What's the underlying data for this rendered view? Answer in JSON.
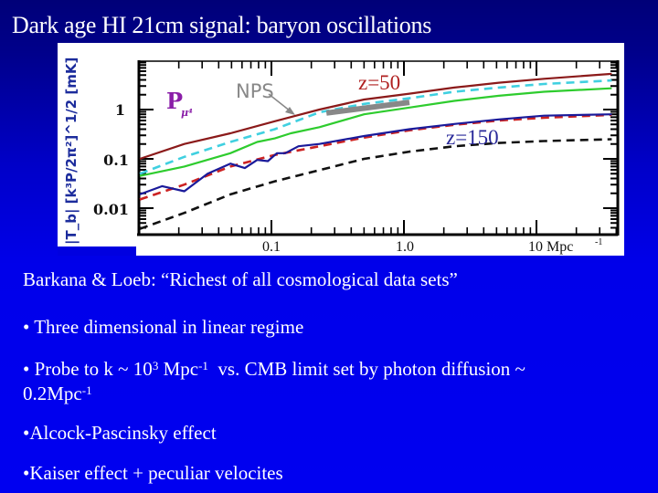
{
  "slide": {
    "title": "Dark age HI 21cm signal: baryon oscillations",
    "background": {
      "top": "#000078",
      "bottom": "#0000f0"
    }
  },
  "figure": {
    "y_axis_label": "|T_b| [k³P/2π²]^1/2 [mK]",
    "y_axis_label_parts": {
      "main": "|T",
      "sub": "b",
      "rest": "| [k³P/2π²]¹/² [mK]"
    },
    "panel_label": "P",
    "panel_label_sub": "μ⁴",
    "nps_label": "NPS",
    "z50_label": "z=50",
    "z150_label": "z=150",
    "x_tick_labels": [
      "0.1",
      "1.0",
      "10 Mpc"
    ],
    "x_unit_sup": "-1",
    "y_tick_labels": [
      "1",
      "0.1",
      "0.01"
    ]
  },
  "chart_data": {
    "type": "line",
    "title": "",
    "xlabel": "k [Mpc^-1]",
    "ylabel": "|T_b| [k^3 P / 2π^2]^1/2 [mK]",
    "xscale": "log",
    "yscale": "log",
    "xlim": [
      0.01,
      40
    ],
    "ylim": [
      0.003,
      10
    ],
    "x_ticks": [
      0.1,
      1.0,
      10
    ],
    "y_ticks": [
      1,
      0.1,
      0.01
    ],
    "annotations": [
      {
        "text": "NPS",
        "x": 0.33,
        "y": 0.9,
        "type": "arrow-to-band"
      },
      {
        "text": "z=50",
        "x": 1.0,
        "y": 1.5
      },
      {
        "text": "z=150",
        "x": 3.0,
        "y": 0.08
      },
      {
        "text": "P_μ4",
        "x": 0.018,
        "y": 0.6
      }
    ],
    "series": [
      {
        "name": "z=50 total",
        "style": "solid",
        "color": "#8b1a1a",
        "x": [
          0.01,
          0.022,
          0.049,
          0.106,
          0.23,
          0.5,
          1.1,
          2.4,
          5.2,
          11.4,
          37
        ],
        "y": [
          0.1,
          0.2,
          0.33,
          0.58,
          1.0,
          1.6,
          2.1,
          2.8,
          3.5,
          4.2,
          5.3
        ]
      },
      {
        "name": "z=50 dashed",
        "style": "dashed",
        "color": "#40d0e0",
        "x": [
          0.01,
          0.022,
          0.049,
          0.106,
          0.23,
          0.5,
          1.1,
          2.4,
          5.2,
          11.4,
          37
        ],
        "y": [
          0.05,
          0.11,
          0.22,
          0.4,
          0.88,
          1.3,
          1.7,
          2.3,
          2.8,
          3.3,
          3.9
        ]
      },
      {
        "name": "z=50 P_mu4",
        "style": "solid",
        "color": "#2ecc2e",
        "x": [
          0.01,
          0.022,
          0.049,
          0.078,
          0.106,
          0.14,
          0.23,
          0.5,
          1.1,
          2.4,
          5.2,
          11.4,
          37
        ],
        "y": [
          0.045,
          0.07,
          0.13,
          0.22,
          0.26,
          0.33,
          0.44,
          0.8,
          1.1,
          1.5,
          1.9,
          2.3,
          2.7
        ]
      },
      {
        "name": "z=150 dashed",
        "style": "dashed",
        "color": "#cc2222",
        "x": [
          0.01,
          0.022,
          0.049,
          0.106,
          0.23,
          0.5,
          1.1,
          2.4,
          5.2,
          11.4,
          37
        ],
        "y": [
          0.015,
          0.03,
          0.07,
          0.12,
          0.18,
          0.27,
          0.38,
          0.49,
          0.6,
          0.68,
          0.78
        ]
      },
      {
        "name": "z=150 total",
        "style": "solid",
        "color": "#1a1a9a",
        "x": [
          0.01,
          0.015,
          0.022,
          0.033,
          0.049,
          0.063,
          0.078,
          0.094,
          0.11,
          0.127,
          0.16,
          0.23,
          0.5,
          1.1,
          2.4,
          5.2,
          11.4,
          37
        ],
        "y": [
          0.019,
          0.028,
          0.022,
          0.05,
          0.08,
          0.065,
          0.095,
          0.09,
          0.13,
          0.13,
          0.18,
          0.2,
          0.29,
          0.4,
          0.51,
          0.63,
          0.75,
          0.8
        ]
      },
      {
        "name": "z=150 other",
        "style": "dashed",
        "color": "#111111",
        "x": [
          0.01,
          0.022,
          0.049,
          0.106,
          0.23,
          0.5,
          1.1,
          2.4,
          5.2,
          11.4,
          37
        ],
        "y": [
          0.0038,
          0.008,
          0.019,
          0.035,
          0.059,
          0.1,
          0.14,
          0.18,
          0.21,
          0.23,
          0.25
        ]
      }
    ],
    "nps_band": {
      "x": [
        0.26,
        1.1
      ],
      "y": [
        0.85,
        1.4
      ],
      "color": "#888888"
    }
  },
  "body": {
    "citation": "Barkana & Loeb: “Richest of all cosmological data sets”",
    "bullets": [
      {
        "bullet": "• ",
        "text": "Three dimensional in linear regime"
      },
      {
        "bullet": "• ",
        "text_a": "Probe to k ~ 10",
        "sup_a": "3",
        "text_b": " Mpc",
        "sup_b": "-1",
        "text_c": "  vs. CMB limit set by photon diffusion ~",
        "line2": "0.2Mpc",
        "line2_sup": "-1"
      },
      {
        "bullet": "•",
        "text": "Alcock-Pascinsky effect"
      },
      {
        "bullet": "•",
        "text": "Kaiser effect + peculiar velocites"
      }
    ]
  }
}
